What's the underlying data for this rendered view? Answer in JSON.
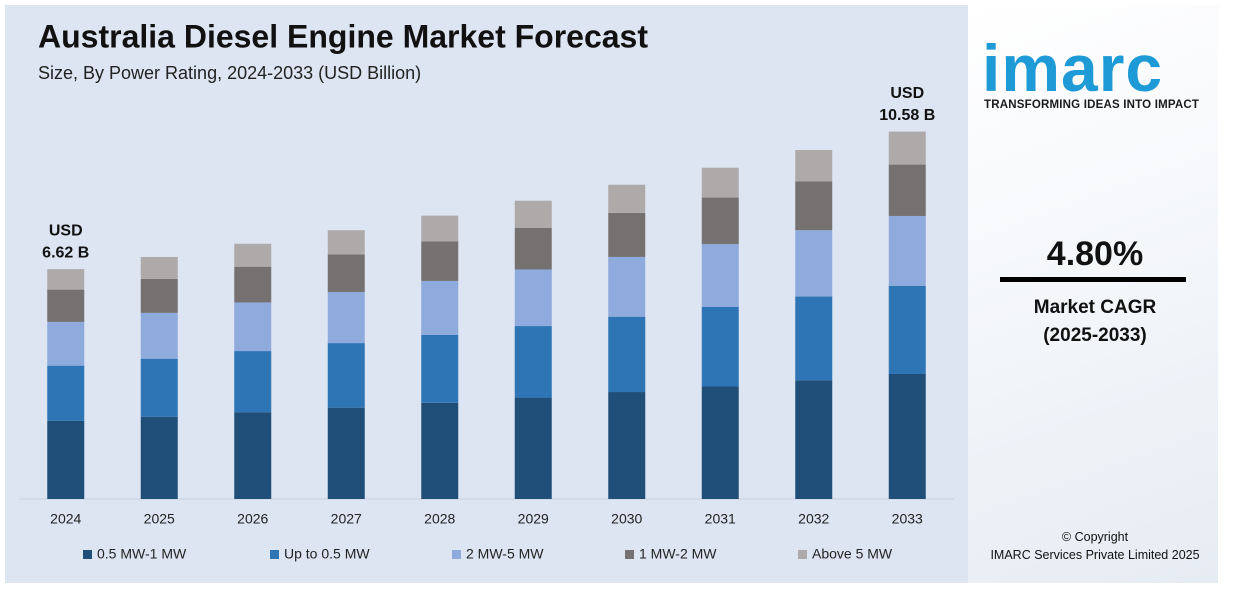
{
  "chart_data": {
    "type": "stacked-bar",
    "title": "Australia Diesel Engine Market Forecast",
    "subtitle": "Size, By Power Rating, 2024-2033 (USD Billion)",
    "categories": [
      "2024",
      "2025",
      "2026",
      "2027",
      "2028",
      "2029",
      "2030",
      "2031",
      "2032",
      "2033"
    ],
    "series": [
      {
        "name": "0.5 MW-1 MW",
        "color": "#1f4e79",
        "values": [
          2.25,
          2.37,
          2.5,
          2.63,
          2.77,
          2.92,
          3.08,
          3.24,
          3.42,
          3.6
        ]
      },
      {
        "name": "Up to 0.5 MW",
        "color": "#2e75b6",
        "values": [
          1.59,
          1.67,
          1.76,
          1.86,
          1.96,
          2.06,
          2.17,
          2.29,
          2.41,
          2.54
        ]
      },
      {
        "name": "2 MW-5 MW",
        "color": "#8faadc",
        "values": [
          1.26,
          1.32,
          1.4,
          1.47,
          1.55,
          1.63,
          1.72,
          1.81,
          1.91,
          2.01
        ]
      },
      {
        "name": "1 MW-2 MW",
        "color": "#767171",
        "values": [
          0.93,
          0.98,
          1.03,
          1.08,
          1.14,
          1.2,
          1.27,
          1.34,
          1.41,
          1.48
        ]
      },
      {
        "name": "Above 5 MW",
        "color": "#aeaaaa",
        "values": [
          0.59,
          0.63,
          0.66,
          0.7,
          0.74,
          0.78,
          0.81,
          0.86,
          0.9,
          0.95
        ]
      }
    ],
    "ylim": [
      0,
      11
    ],
    "annotations": [
      {
        "category": "2024",
        "lines": [
          "USD",
          "6.62 B"
        ],
        "value": 6.62
      },
      {
        "category": "2033",
        "lines": [
          "USD",
          "10.58 B"
        ],
        "value": 10.58
      }
    ],
    "legend": "bottom"
  },
  "sidebar": {
    "logo": "imarc",
    "tagline": "TRANSFORMING IDEAS INTO IMPACT",
    "cagr": "4.80%",
    "cagr_label": "Market CAGR",
    "cagr_period": "(2025-2033)",
    "copyright": "© Copyright",
    "company": "IMARC Services Private Limited 2025"
  }
}
